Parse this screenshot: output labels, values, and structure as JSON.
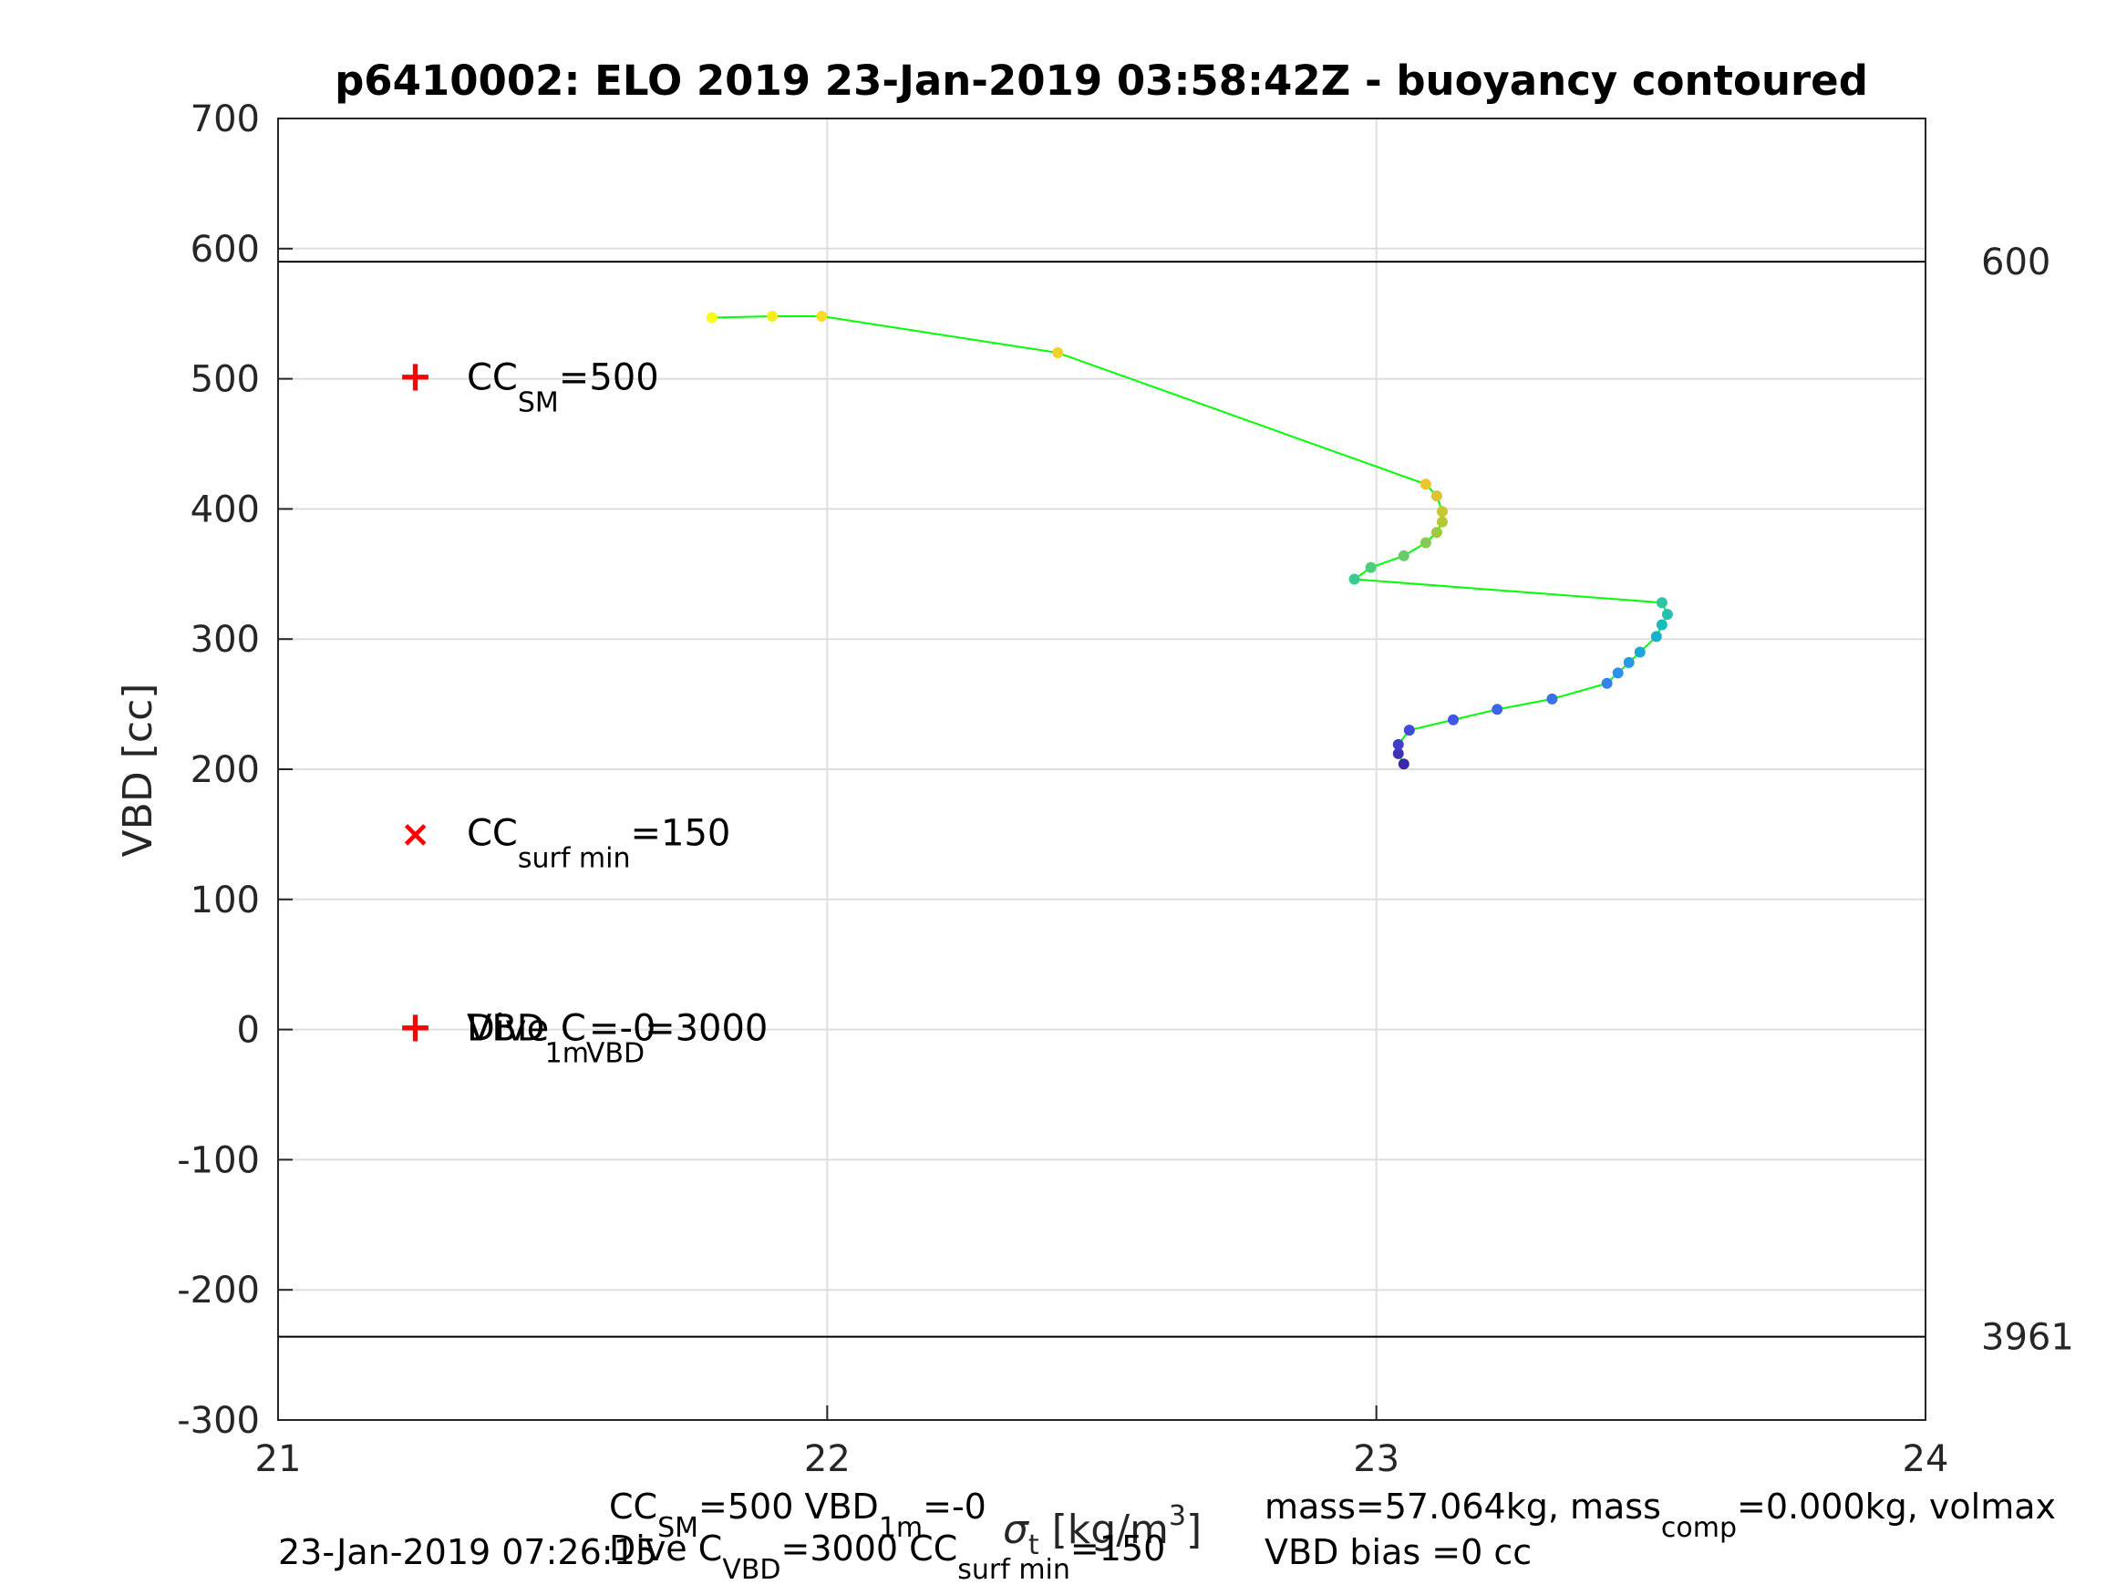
{
  "chart_data": {
    "type": "scatter",
    "title": "p6410002: ELO 2019 23-Jan-2019 03:58:42Z - buoyancy contoured",
    "xlabel_parts": [
      "σ",
      "t",
      " [kg/m",
      "3",
      "]"
    ],
    "ylabel": "VBD [cc]",
    "xlim": [
      21,
      24
    ],
    "ylim": [
      -300,
      700
    ],
    "xticks": [
      "21",
      "22",
      "23",
      "24"
    ],
    "yticks": [
      "-300",
      "-200",
      "-100",
      "0",
      "100",
      "200",
      "300",
      "400",
      "500",
      "600",
      "700"
    ],
    "grid": true,
    "line_color": "#00ff00",
    "colormap": [
      "#3e26a8",
      "#4354e8",
      "#2f8cf0",
      "#14b8c4",
      "#3ccf8e",
      "#a8c837",
      "#f2c431",
      "#f9fb15"
    ],
    "points": [
      {
        "x": 23.05,
        "y": 204
      },
      {
        "x": 23.04,
        "y": 212
      },
      {
        "x": 23.04,
        "y": 219
      },
      {
        "x": 23.06,
        "y": 230
      },
      {
        "x": 23.14,
        "y": 238
      },
      {
        "x": 23.22,
        "y": 246
      },
      {
        "x": 23.32,
        "y": 254
      },
      {
        "x": 23.42,
        "y": 266
      },
      {
        "x": 23.44,
        "y": 274
      },
      {
        "x": 23.46,
        "y": 282
      },
      {
        "x": 23.48,
        "y": 290
      },
      {
        "x": 23.51,
        "y": 302
      },
      {
        "x": 23.52,
        "y": 311
      },
      {
        "x": 23.53,
        "y": 319
      },
      {
        "x": 23.52,
        "y": 328
      },
      {
        "x": 22.96,
        "y": 346
      },
      {
        "x": 22.99,
        "y": 355
      },
      {
        "x": 23.05,
        "y": 364
      },
      {
        "x": 23.09,
        "y": 374
      },
      {
        "x": 23.11,
        "y": 382
      },
      {
        "x": 23.12,
        "y": 390
      },
      {
        "x": 23.12,
        "y": 398
      },
      {
        "x": 23.11,
        "y": 410
      },
      {
        "x": 23.09,
        "y": 419
      },
      {
        "x": 22.42,
        "y": 520
      },
      {
        "x": 21.99,
        "y": 548
      },
      {
        "x": 21.9,
        "y": 548
      },
      {
        "x": 21.79,
        "y": 547
      }
    ],
    "hlines": [
      {
        "y": 590,
        "label": "600"
      },
      {
        "y": -236,
        "label": "3961"
      }
    ],
    "markers": [
      {
        "symbol": "+",
        "x": 21.25,
        "y": 500,
        "color": "#ff0000",
        "label_base": "CC",
        "label_sub": "SM",
        "label_rest": "=500"
      },
      {
        "symbol": "×",
        "x": 21.25,
        "y": 150,
        "color": "#ff0000",
        "label_base": "CC",
        "label_sub": "surf min",
        "label_rest": "=150"
      },
      {
        "symbol": "+",
        "x": 21.25,
        "y": 0,
        "color": "#ff0000",
        "label_base": "VBD",
        "label_sub": "1m",
        "label_rest": "=-0"
      },
      {
        "symbol": "",
        "x": 21.25,
        "y": 0,
        "color": "#000000",
        "label_base": "Dive C",
        "label_sub": "VBD",
        "label_rest": "=3000"
      }
    ]
  },
  "footer": {
    "line1_left": [
      {
        "base": "CC",
        "sub": "SM",
        "rest": "=500"
      },
      {
        "base": "VBD",
        "sub": "1m",
        "rest": "=-0"
      }
    ],
    "line2_left": [
      {
        "base": "Dive C",
        "sub": "VBD",
        "rest": "=3000"
      },
      {
        "base": "CC",
        "sub": "surf min",
        "rest": "=150"
      }
    ],
    "timestamp": "23-Jan-2019 07:26:15",
    "line1_right_a": "mass=57.064kg, mass",
    "line1_right_sub": "comp",
    "line1_right_b": "=0.000kg, volmax",
    "line2_right": "VBD bias =0 cc"
  }
}
